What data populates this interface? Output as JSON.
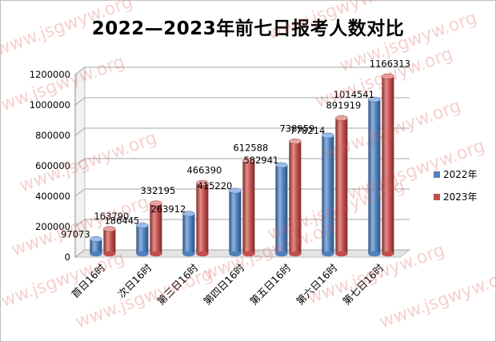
{
  "chart_data": {
    "type": "bar",
    "title": "2022—2023年前七日报考人数对比",
    "categories": [
      "首日16时",
      "次日16时",
      "第三日16时",
      "第四日16时",
      "第五日16时",
      "第六日16时",
      "第七日16时"
    ],
    "series": [
      {
        "name": "2022年",
        "color": "#4f81bd",
        "values": [
          97073,
          186445,
          263912,
          415220,
          582941,
          778214,
          1014541
        ]
      },
      {
        "name": "2023年",
        "color": "#c0504d",
        "values": [
          163790,
          332195,
          466390,
          612588,
          738959,
          891919,
          1166313
        ]
      }
    ],
    "ylim": [
      0,
      1200000
    ],
    "yticks": [
      0,
      200000,
      400000,
      600000,
      800000,
      1000000,
      1200000
    ],
    "grid": true,
    "legend": "right",
    "watermark": "www.jsgwyw.org"
  }
}
